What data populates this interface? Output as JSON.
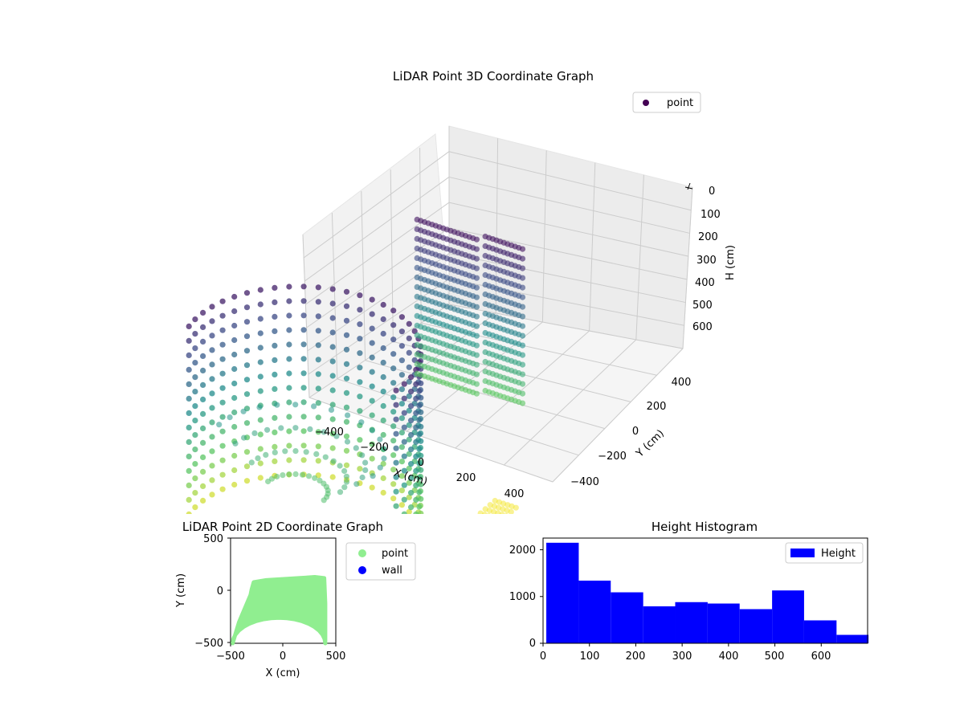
{
  "colors": {
    "viridis_low": "#440154",
    "viridis_mid": "#21918c",
    "viridis_high": "#fde725",
    "point_2d": "#90ee90",
    "wall_2d": "#0000ff",
    "hist_bar": "#0000ff",
    "pane": "#f2f2f2",
    "grid": "#cccccc"
  },
  "chart_data": [
    {
      "type": "scatter",
      "title": "LiDAR Point 3D Coordinate Graph",
      "xlabel": "X (cm)",
      "ylabel": "Y (cm)",
      "zlabel": "H (cm)",
      "legend": {
        "placement": "top-right",
        "entries": [
          "point"
        ]
      },
      "x_ticks": [
        "−400",
        "−200",
        "0",
        "200",
        "400"
      ],
      "y_ticks": [
        "−400",
        "−200",
        "0",
        "200",
        "400"
      ],
      "z_ticks": [
        "0",
        "100",
        "200",
        "300",
        "400",
        "500",
        "600"
      ],
      "xlim": [
        -500,
        500
      ],
      "ylim": [
        -500,
        500
      ],
      "zlim": [
        0,
        700
      ],
      "z_inverted": true,
      "colormap": "viridis",
      "grid": true
    },
    {
      "type": "scatter",
      "title": "LiDAR Point 2D Coordinate Graph",
      "xlabel": "X (cm)",
      "ylabel": "Y (cm)",
      "x_ticks": [
        "−500",
        "0",
        "500"
      ],
      "y_ticks": [
        "−500",
        "0",
        "500"
      ],
      "xlim": [
        -500,
        500
      ],
      "ylim": [
        -500,
        500
      ],
      "legend": {
        "placement": "outside-right",
        "entries": [
          "point",
          "wall"
        ]
      },
      "series": [
        {
          "name": "point",
          "region": "filled semicircular footprint, x from -480 to 400, y from -500 to 130"
        },
        {
          "name": "wall",
          "values": []
        }
      ],
      "grid": false
    },
    {
      "type": "bar",
      "title": "Height Histogram",
      "x_ticks": [
        "0",
        "100",
        "200",
        "300",
        "400",
        "500",
        "600"
      ],
      "y_ticks": [
        "0",
        "1000",
        "2000"
      ],
      "xlim": [
        0,
        700
      ],
      "ylim": [
        0,
        2250
      ],
      "legend": {
        "placement": "top-right",
        "entries": [
          "Height"
        ]
      },
      "series": [
        {
          "name": "Height",
          "bin_edges": [
            7,
            77,
            146,
            216,
            285,
            355,
            424,
            494,
            563,
            633,
            702
          ],
          "values": [
            2150,
            1340,
            1090,
            790,
            880,
            850,
            730,
            1130,
            490,
            180
          ]
        }
      ],
      "grid": false
    }
  ]
}
